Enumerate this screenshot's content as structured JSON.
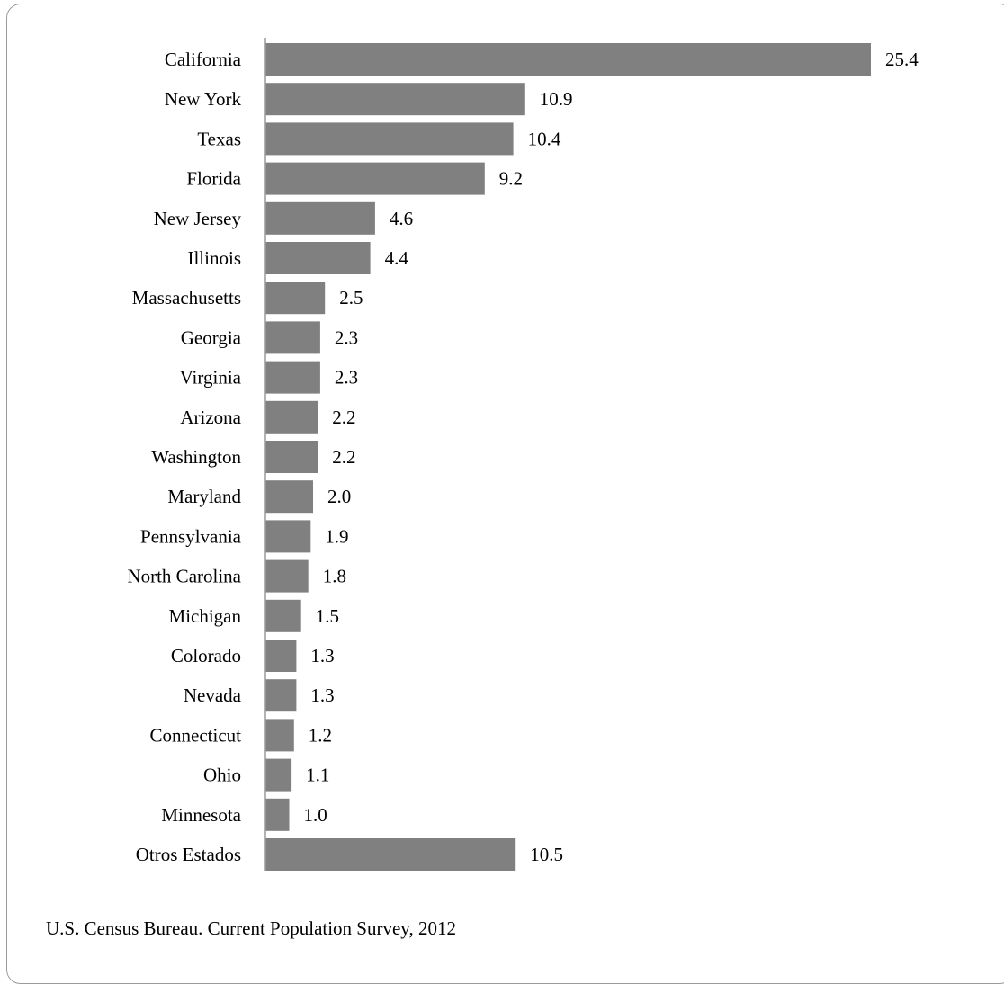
{
  "chart_data": {
    "type": "bar",
    "orientation": "horizontal",
    "categories": [
      "California",
      "New York",
      "Texas",
      "Florida",
      "New Jersey",
      "Illinois",
      "Massachusetts",
      "Georgia",
      "Virginia",
      "Arizona",
      "Washington",
      "Maryland",
      "Pennsylvania",
      "North Carolina",
      "Michigan",
      "Colorado",
      "Nevada",
      "Connecticut",
      "Ohio",
      "Minnesota",
      "Otros Estados"
    ],
    "values": [
      25.4,
      10.9,
      10.4,
      9.2,
      4.6,
      4.4,
      2.5,
      2.3,
      2.3,
      2.2,
      2.2,
      2.0,
      1.9,
      1.8,
      1.5,
      1.3,
      1.3,
      1.2,
      1.1,
      1.0,
      10.5
    ],
    "value_labels": [
      "25.4",
      "10.9",
      "10.4",
      "9.2",
      "4.6",
      "4.4",
      "2.5",
      "2.3",
      "2.3",
      "2.2",
      "2.2",
      "2.0",
      "1.9",
      "1.8",
      "1.5",
      "1.3",
      "1.3",
      "1.2",
      "1.1",
      "1.0",
      "10.5"
    ],
    "bar_color": "#808080",
    "grid": false,
    "legend": "none",
    "xlim": [
      0,
      25.4
    ]
  },
  "source_note": "U.S. Census Bureau. Current Population Survey, 2012"
}
